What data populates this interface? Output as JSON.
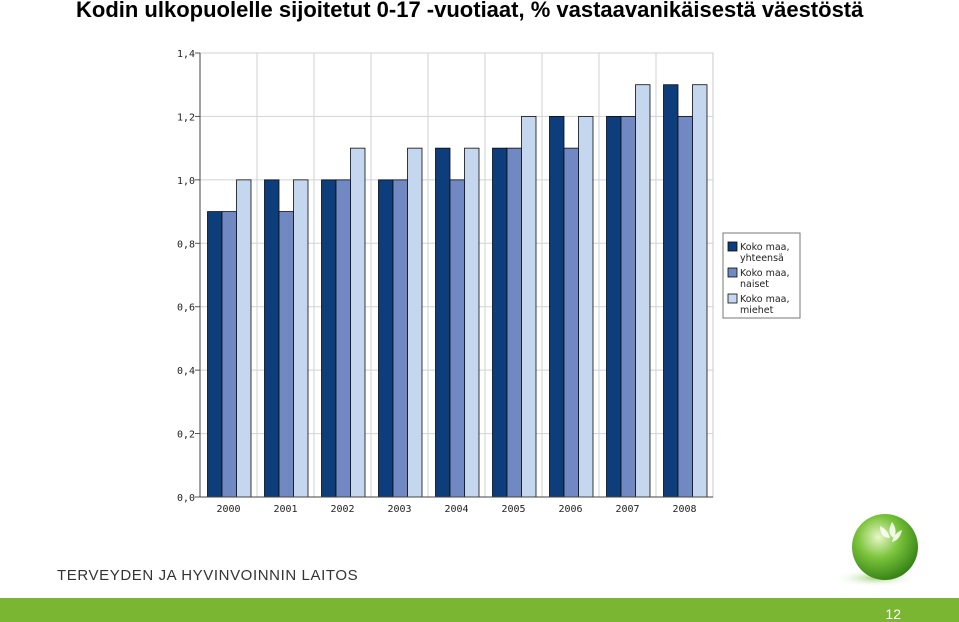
{
  "slide": {
    "title": "Kodin ulkopuolelle sijoitetut 0-17 -vuotiaat, % vastaavanikäisestä väestöstä",
    "organization": "TERVEYDEN JA HYVINVOINNIN LAITOS",
    "page_number": "12"
  },
  "colors": {
    "footer_bar": "#7ab632",
    "series": [
      "#0d3d7a",
      "#7089c2",
      "#c5d6ef"
    ]
  },
  "chart_data": {
    "type": "bar",
    "categories": [
      "2000",
      "2001",
      "2002",
      "2003",
      "2004",
      "2005",
      "2006",
      "2007",
      "2008"
    ],
    "series": [
      {
        "name": "Koko maa, yhteensä",
        "values": [
          0.9,
          1.0,
          1.0,
          1.0,
          1.1,
          1.1,
          1.2,
          1.2,
          1.3
        ]
      },
      {
        "name": "Koko maa, naiset",
        "values": [
          0.9,
          0.9,
          1.0,
          1.0,
          1.0,
          1.1,
          1.1,
          1.2,
          1.2
        ]
      },
      {
        "name": "Koko maa, miehet",
        "values": [
          1.0,
          1.0,
          1.1,
          1.1,
          1.1,
          1.2,
          1.2,
          1.3,
          1.3
        ]
      }
    ],
    "legend_lines": [
      [
        "Koko maa,",
        "yhteensä"
      ],
      [
        "Koko maa,",
        "naiset"
      ],
      [
        "Koko maa,",
        "miehet"
      ]
    ],
    "y_ticks": [
      "0,0",
      "0,2",
      "0,4",
      "0,6",
      "0,8",
      "1,0",
      "1,2",
      "1,4"
    ],
    "ylim": [
      0,
      1.4
    ],
    "grid": true,
    "legend_position": "right"
  }
}
